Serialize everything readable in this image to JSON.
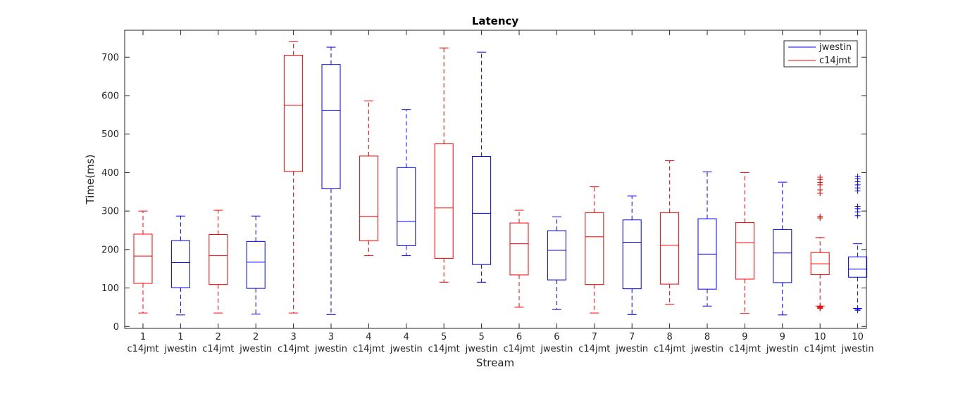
{
  "chart_data": {
    "type": "boxplot",
    "title": "Latency",
    "xlabel": "Stream",
    "ylabel": "Time(ms)",
    "ylim": [
      -5,
      770
    ],
    "yticks": [
      0,
      100,
      200,
      300,
      400,
      500,
      600,
      700
    ],
    "grid": false,
    "legend_position": "top-right",
    "legend": [
      {
        "label": "jwestin",
        "color": "#0000ff"
      },
      {
        "label": "c14jmt",
        "color": "#ff0000"
      }
    ],
    "boxes": [
      {
        "stream": "1",
        "group": "c14jmt",
        "color": "#ff0000",
        "whisker_low": 35,
        "q1": 112,
        "median": 183,
        "q3": 240,
        "whisker_high": 300,
        "outliers": []
      },
      {
        "stream": "1",
        "group": "jwestin",
        "color": "#0000ff",
        "whisker_low": 30,
        "q1": 101,
        "median": 166,
        "q3": 223,
        "whisker_high": 287,
        "outliers": []
      },
      {
        "stream": "2",
        "group": "c14jmt",
        "color": "#ff0000",
        "whisker_low": 35,
        "q1": 109,
        "median": 184,
        "q3": 239,
        "whisker_high": 302,
        "outliers": []
      },
      {
        "stream": "2",
        "group": "jwestin",
        "color": "#0000ff",
        "whisker_low": 32,
        "q1": 99,
        "median": 167,
        "q3": 221,
        "whisker_high": 287,
        "outliers": []
      },
      {
        "stream": "3",
        "group": "c14jmt",
        "color": "#ff0000",
        "whisker_low": 35,
        "q1": 403,
        "median": 575,
        "q3": 705,
        "whisker_high": 740,
        "outliers": []
      },
      {
        "stream": "3",
        "group": "jwestin",
        "color": "#0000ff",
        "whisker_low": 31,
        "q1": 358,
        "median": 561,
        "q3": 681,
        "whisker_high": 726,
        "outliers": []
      },
      {
        "stream": "4",
        "group": "c14jmt",
        "color": "#ff0000",
        "whisker_low": 184,
        "q1": 223,
        "median": 286,
        "q3": 443,
        "whisker_high": 586,
        "outliers": []
      },
      {
        "stream": "4",
        "group": "jwestin",
        "color": "#0000ff",
        "whisker_low": 184,
        "q1": 210,
        "median": 273,
        "q3": 413,
        "whisker_high": 564,
        "outliers": []
      },
      {
        "stream": "5",
        "group": "c14jmt",
        "color": "#ff0000",
        "whisker_low": 115,
        "q1": 177,
        "median": 308,
        "q3": 475,
        "whisker_high": 724,
        "outliers": []
      },
      {
        "stream": "5",
        "group": "jwestin",
        "color": "#0000ff",
        "whisker_low": 115,
        "q1": 161,
        "median": 294,
        "q3": 442,
        "whisker_high": 713,
        "outliers": []
      },
      {
        "stream": "6",
        "group": "c14jmt",
        "color": "#ff0000",
        "whisker_low": 50,
        "q1": 134,
        "median": 215,
        "q3": 269,
        "whisker_high": 302,
        "outliers": []
      },
      {
        "stream": "6",
        "group": "jwestin",
        "color": "#0000ff",
        "whisker_low": 44,
        "q1": 121,
        "median": 198,
        "q3": 249,
        "whisker_high": 285,
        "outliers": []
      },
      {
        "stream": "7",
        "group": "c14jmt",
        "color": "#ff0000",
        "whisker_low": 35,
        "q1": 109,
        "median": 233,
        "q3": 296,
        "whisker_high": 363,
        "outliers": []
      },
      {
        "stream": "7",
        "group": "jwestin",
        "color": "#0000ff",
        "whisker_low": 31,
        "q1": 98,
        "median": 219,
        "q3": 277,
        "whisker_high": 339,
        "outliers": []
      },
      {
        "stream": "8",
        "group": "c14jmt",
        "color": "#ff0000",
        "whisker_low": 58,
        "q1": 110,
        "median": 211,
        "q3": 296,
        "whisker_high": 431,
        "outliers": []
      },
      {
        "stream": "8",
        "group": "jwestin",
        "color": "#0000ff",
        "whisker_low": 53,
        "q1": 97,
        "median": 188,
        "q3": 280,
        "whisker_high": 402,
        "outliers": []
      },
      {
        "stream": "9",
        "group": "c14jmt",
        "color": "#ff0000",
        "whisker_low": 34,
        "q1": 123,
        "median": 218,
        "q3": 270,
        "whisker_high": 400,
        "outliers": []
      },
      {
        "stream": "9",
        "group": "jwestin",
        "color": "#0000ff",
        "whisker_low": 30,
        "q1": 114,
        "median": 191,
        "q3": 252,
        "whisker_high": 375,
        "outliers": []
      },
      {
        "stream": "10",
        "group": "c14jmt",
        "color": "#ff0000",
        "whisker_low": 53,
        "q1": 135,
        "median": 163,
        "q3": 192,
        "whisker_high": 231,
        "outliers": [
          388,
          382,
          374,
          368,
          355,
          346,
          286,
          282,
          52,
          50,
          48,
          47
        ]
      },
      {
        "stream": "10",
        "group": "jwestin",
        "color": "#0000ff",
        "whisker_low": 47,
        "q1": 128,
        "median": 149,
        "q3": 181,
        "whisker_high": 215,
        "outliers": [
          390,
          384,
          376,
          368,
          360,
          352,
          312,
          306,
          298,
          288,
          45,
          42
        ]
      }
    ]
  }
}
